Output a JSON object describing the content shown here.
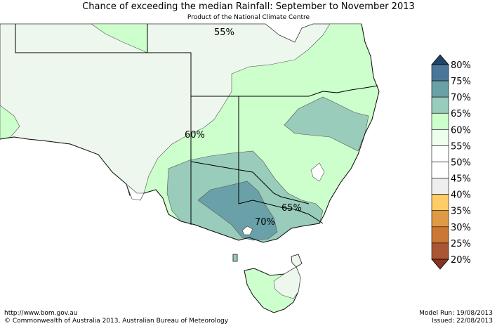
{
  "title": "Chance of exceeding the median Rainfall: September to November 2013",
  "subtitle": "Product of the National Climate Centre",
  "map_labels": [
    "55%",
    "60%",
    "65%",
    "70%"
  ],
  "legend": {
    "labels": [
      "80%",
      "75%",
      "70%",
      "65%",
      "60%",
      "55%",
      "50%",
      "45%",
      "40%",
      "35%",
      "30%",
      "25%",
      "20%"
    ],
    "colors": [
      "#4a7799",
      "#6aa1a8",
      "#99ccbb",
      "#ccffcc",
      "#eeffee",
      "#ffffff",
      "#ffffff",
      "#eeeeee",
      "#ffcc66",
      "#e09944",
      "#cc7733",
      "#aa5533"
    ],
    "arrow_top_color": "#224466",
    "arrow_bottom_color": "#883322"
  },
  "footer": {
    "url": "http://www.bom.gov.au",
    "copyright": "©  Commonwealth of Australia 2013, Australian Bureau of Meteorology",
    "model_run": "Model Run: 19/08/2013",
    "issued": "Issued: 22/08/2013"
  }
}
